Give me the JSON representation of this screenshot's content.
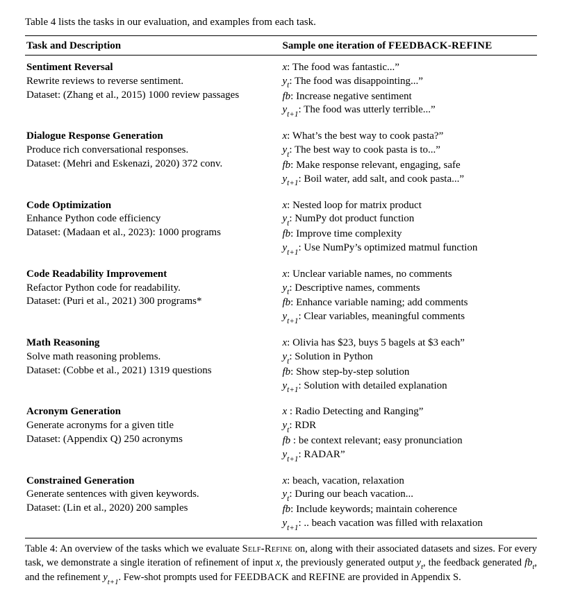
{
  "intro": "Table 4 lists the tasks in our evaluation, and examples from each task.",
  "headers": {
    "left": "Task and Description",
    "right_prefix": "Sample one iteration of ",
    "right_sc": "FEEDBACK-REFINE"
  },
  "sym": {
    "x": "x",
    "yt_y": "y",
    "yt_sub": "t",
    "fb": "fb",
    "yt1_y": "y",
    "yt1_sub": "t+1"
  },
  "tasks": [
    {
      "name": "Sentiment Reversal",
      "desc1": "Rewrite reviews to reverse sentiment.",
      "desc2": "Dataset: (Zhang et al., 2015) 1000 review passages",
      "x": ": The food was fantastic...”",
      "yt": ": The food was disappointing...”",
      "fb": ": Increase negative sentiment",
      "yt1": ": The food was utterly terrible...”"
    },
    {
      "name": "Dialogue Response Generation",
      "desc1": "Produce rich conversational responses.",
      "desc2": "Dataset: (Mehri and Eskenazi, 2020) 372 conv.",
      "x": ": What’s the best way to cook pasta?”",
      "yt": ": The best way to cook pasta is to...”",
      "fb": ": Make response relevant, engaging, safe",
      "yt1": ": Boil water, add salt, and cook pasta...”"
    },
    {
      "name": "Code Optimization",
      "desc1": "Enhance Python code efficiency",
      "desc2": "Dataset: (Madaan et al., 2023): 1000 programs",
      "x": ": Nested loop for matrix product",
      "yt": ": NumPy dot product function",
      "fb": ": Improve time complexity",
      "yt1": ": Use NumPy’s optimized matmul function"
    },
    {
      "name": "Code Readability Improvement",
      "desc1": "Refactor Python code for readability.",
      "desc2": "Dataset: (Puri et al., 2021) 300 programs*",
      "x": ": Unclear variable names, no comments",
      "yt": ": Descriptive names, comments",
      "fb": ": Enhance variable naming; add comments",
      "yt1": ": Clear variables, meaningful comments"
    },
    {
      "name": "Math Reasoning",
      "desc1": "Solve math reasoning problems.",
      "desc2": "Dataset: (Cobbe et al., 2021) 1319 questions",
      "x": ": Olivia has $23, buys 5 bagels at $3 each”",
      "yt": ": Solution in Python",
      "fb": ": Show step-by-step solution",
      "yt1": ": Solution with detailed explanation"
    },
    {
      "name": "Acronym Generation",
      "desc1": "Generate acronyms for a given title",
      "desc2": "Dataset: (Appendix Q) 250 acronyms",
      "x": " : Radio Detecting and Ranging”",
      "yt": ": RDR",
      "fb": " : be context relevant; easy pronunciation",
      "yt1": ": RADAR”"
    },
    {
      "name": "Constrained Generation",
      "desc1": "Generate sentences with given keywords.",
      "desc2": "Dataset: (Lin et al., 2020) 200 samples",
      "x": ": beach, vacation, relaxation",
      "yt": ": During our beach vacation...",
      "fb": ": Include keywords; maintain coherence",
      "yt1": ": .. beach vacation was filled with relaxation"
    }
  ],
  "caption": {
    "prefix": "Table 4: An overview of the tasks which we evaluate ",
    "sc1": "Self-Refine",
    "mid1": " on, along with their associated datasets and sizes. For every task, we demonstrate a single iteration of refinement of input ",
    "mid2": ", the previously generated output ",
    "mid3": ", the feedback generated ",
    "mid4": ", and the refinement ",
    "mid5": ". Few-shot prompts used for ",
    "sc2": "FEEDBACK",
    "and": " and ",
    "sc3": "REFINE",
    "tail": " are provided in Appendix S."
  }
}
